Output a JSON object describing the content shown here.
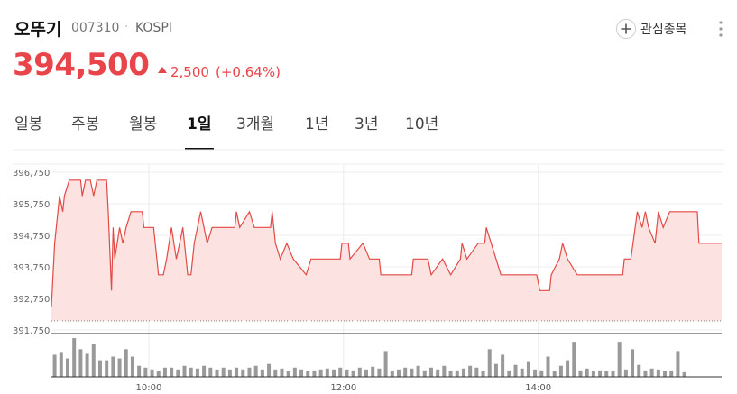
{
  "header": {
    "name": "오뚜기",
    "code": "007310",
    "market": "KOSPI",
    "price": "394,500",
    "change": "2,500",
    "change_pct": "(+0.64%)",
    "watch": "관심종목"
  },
  "tabs": [
    "일봉",
    "주봉",
    "월봉",
    "1일",
    "3개월",
    "1년",
    "3년",
    "10년"
  ],
  "selected_tab": 3,
  "chart_data": {
    "type": "line",
    "color": "#e24a45",
    "fill": "#fde2e2",
    "volume_color": "#999999",
    "x": [
      "09:00",
      "09:02",
      "09:04",
      "09:05",
      "09:07",
      "09:08",
      "09:11",
      "09:18",
      "09:19",
      "09:21",
      "09:24",
      "09:26",
      "09:28",
      "09:34",
      "09:35",
      "09:37",
      "09:38",
      "09:39",
      "09:42",
      "09:44",
      "09:46",
      "09:49",
      "09:56",
      "09:57",
      "10:03",
      "10:04",
      "10:06",
      "10:09",
      "10:11",
      "10:14",
      "10:17",
      "10:21",
      "10:24",
      "10:26",
      "10:28",
      "10:32",
      "10:36",
      "10:39",
      "10:53",
      "10:54",
      "10:56",
      "11:02",
      "11:05",
      "11:15",
      "11:16",
      "11:18",
      "11:21",
      "11:25",
      "11:29",
      "11:37",
      "11:40",
      "11:58",
      "11:59",
      "12:03",
      "12:04",
      "12:12",
      "12:16",
      "12:22",
      "12:23",
      "12:42",
      "12:43",
      "12:52",
      "12:54",
      "13:01",
      "13:06",
      "13:12",
      "13:13",
      "13:16",
      "13:23",
      "13:27",
      "13:28",
      "13:31",
      "13:34",
      "13:37",
      "13:59",
      "14:01",
      "14:07",
      "14:08",
      "14:13",
      "14:15",
      "14:18",
      "14:24",
      "14:52",
      "14:53",
      "14:57",
      "15:01",
      "15:04",
      "15:06",
      "15:08",
      "15:12",
      "15:14",
      "15:17",
      "15:21",
      "15:26",
      "15:38",
      "15:39",
      "15:53"
    ],
    "values": [
      392500,
      394500,
      395500,
      396000,
      395500,
      396000,
      396500,
      396500,
      396000,
      396500,
      396500,
      396000,
      396500,
      396500,
      395500,
      393000,
      395000,
      394000,
      395000,
      394500,
      395000,
      395500,
      395500,
      395000,
      395000,
      394500,
      393500,
      393500,
      394000,
      395000,
      394000,
      395000,
      393500,
      393500,
      394500,
      395500,
      394500,
      395000,
      395000,
      395500,
      395000,
      395500,
      395000,
      395000,
      395500,
      394500,
      394000,
      394500,
      394000,
      393500,
      394000,
      394000,
      394500,
      394500,
      394000,
      394500,
      394000,
      394000,
      393500,
      393500,
      394000,
      394000,
      393500,
      394000,
      393500,
      394000,
      394500,
      394000,
      394500,
      394500,
      395000,
      394500,
      394000,
      393500,
      393500,
      393000,
      393000,
      393500,
      394000,
      394500,
      394000,
      393500,
      393500,
      394000,
      394000,
      395500,
      395000,
      395500,
      395000,
      394500,
      395500,
      395000,
      395500,
      395500,
      395500,
      394500,
      394500
    ],
    "xlim": [
      "09:00",
      "15:53"
    ],
    "xticks": [
      "10:00",
      "12:00",
      "14:00"
    ],
    "ylim": [
      391750,
      396750
    ],
    "yticks": [
      {
        "value": 391750,
        "label": "391,750"
      },
      {
        "value": 392750,
        "label": "392,750"
      },
      {
        "value": 393750,
        "label": "393,750"
      },
      {
        "value": 394750,
        "label": "394,750"
      },
      {
        "value": 395750,
        "label": "395,750"
      },
      {
        "value": 396750,
        "label": "396,750"
      }
    ],
    "grid": true,
    "volume": {
      "ylim": [
        0,
        45
      ],
      "x": [
        "09:02",
        "09:06",
        "09:10",
        "09:14",
        "09:18",
        "09:22",
        "09:26",
        "09:30",
        "09:34",
        "09:38",
        "09:42",
        "09:46",
        "09:50",
        "09:54",
        "09:58",
        "10:02",
        "10:06",
        "10:10",
        "10:14",
        "10:18",
        "10:22",
        "10:26",
        "10:30",
        "10:34",
        "10:38",
        "10:42",
        "10:46",
        "10:50",
        "10:54",
        "10:58",
        "11:02",
        "11:06",
        "11:10",
        "11:14",
        "11:18",
        "11:22",
        "11:26",
        "11:30",
        "11:34",
        "11:38",
        "11:42",
        "11:46",
        "11:50",
        "11:54",
        "11:58",
        "12:02",
        "12:06",
        "12:10",
        "12:14",
        "12:18",
        "12:22",
        "12:26",
        "12:30",
        "12:34",
        "12:38",
        "12:42",
        "12:46",
        "12:50",
        "12:54",
        "12:58",
        "13:02",
        "13:06",
        "13:10",
        "13:14",
        "13:18",
        "13:22",
        "13:26",
        "13:30",
        "13:34",
        "13:38",
        "13:42",
        "13:46",
        "13:50",
        "13:54",
        "13:58",
        "14:02",
        "14:06",
        "14:10",
        "14:14",
        "14:18",
        "14:22",
        "14:26",
        "14:30",
        "14:34",
        "14:38",
        "14:42",
        "14:46",
        "14:50",
        "14:54",
        "14:58",
        "15:02",
        "15:06",
        "15:10",
        "15:14",
        "15:18",
        "15:22",
        "15:26",
        "15:30"
      ],
      "values": [
        24,
        27,
        20,
        42,
        30,
        25,
        36,
        18,
        18,
        22,
        20,
        30,
        22,
        12,
        10,
        8,
        6,
        10,
        10,
        8,
        12,
        10,
        9,
        12,
        10,
        8,
        10,
        8,
        10,
        8,
        10,
        12,
        8,
        14,
        8,
        9,
        6,
        10,
        8,
        6,
        7,
        8,
        9,
        8,
        10,
        8,
        7,
        10,
        8,
        11,
        9,
        28,
        6,
        8,
        10,
        9,
        12,
        7,
        10,
        8,
        12,
        6,
        7,
        9,
        12,
        10,
        6,
        30,
        14,
        24,
        7,
        13,
        9,
        17,
        8,
        7,
        22,
        6,
        12,
        18,
        38,
        7,
        9,
        6,
        7,
        6,
        6,
        38,
        8,
        30,
        13,
        7,
        9,
        8,
        6,
        7,
        28,
        5
      ]
    }
  }
}
